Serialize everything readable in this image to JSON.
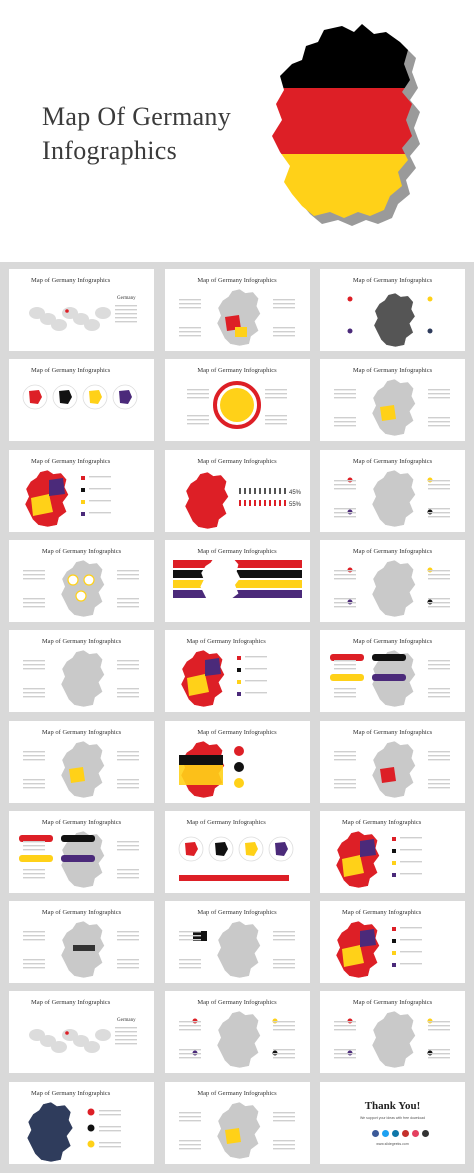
{
  "hero": {
    "title_line1": "Map Of Germany",
    "title_line2": "Infographics",
    "flag_colors": [
      "#000000",
      "#dd1f26",
      "#ffd118"
    ]
  },
  "slide_title": "Map of Germany Infographics",
  "thumbnails": {
    "titles": [
      "Map of Germany Infographics",
      "Map of Germany Infographics",
      "Map of Germany Infographics",
      "Map of Germany Infographics",
      "Map of Germany Infographics",
      "Map of Germany Infographics",
      "Map of Germany Infographics",
      "Map of Germany Infographics",
      "Map of Germany Infographics",
      "Map of Germany Infographics",
      "Map of Germany Infographics",
      "Map of Germany Infographics",
      "Map of Germany Infographics",
      "Map of Germany Infographics",
      "Map of Germany Infographics",
      "Map of Germany Infographics",
      "Map of Germany Infographics",
      "Map of Germany Infographics",
      "Map of Germany Infographics",
      "Map of Germany Infographics",
      "Map of Germany Infographics",
      "Map of Germany Infographics",
      "Map of Germany Infographics",
      "Map of Germany Infographics",
      "Map of Germany Infographics",
      "Map of Germany Infographics",
      "Map of Germany Infographics",
      "Map of Germany Infographics",
      "Map of Germany Infographics"
    ],
    "percent_a": "45%",
    "percent_b": "55%",
    "legend_top": "Germany",
    "legend_world": "Germany"
  },
  "thanks": {
    "title": "Thank You!",
    "subtitle": "We support your ideas with free download",
    "link": "www.slidegeeks.com"
  },
  "colors": {
    "red": "#dd1f26",
    "yellow": "#ffd118",
    "black": "#111111",
    "purple": "#4b2a7a",
    "grey": "#c9c9c9",
    "navy": "#2f3c5c"
  }
}
